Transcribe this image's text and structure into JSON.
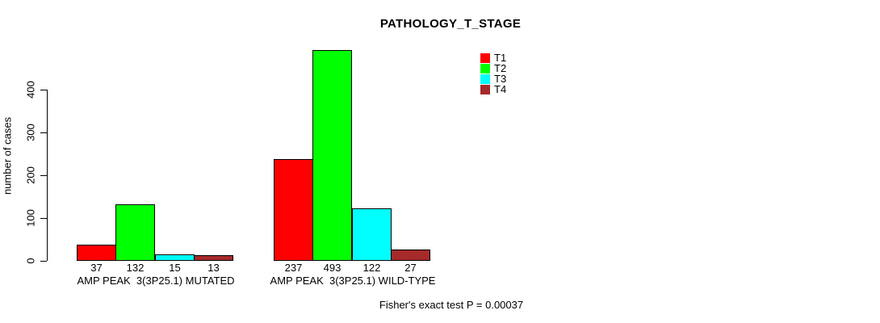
{
  "chart_data": {
    "type": "bar",
    "title": "PATHOLOGY_T_STAGE",
    "ylabel": "number of cases",
    "xlabel": "",
    "ylim": [
      0,
      400
    ],
    "yticks": [
      0,
      100,
      200,
      300,
      400
    ],
    "grid": false,
    "legend_position": "top-right",
    "background": "#ffffff",
    "bar_border_color": "#000000",
    "text_color": "#000000",
    "groups": [
      "AMP PEAK  3(3P25.1) MUTATED",
      "AMP PEAK  3(3P25.1) WILD-TYPE"
    ],
    "series": [
      {
        "name": "T1",
        "color": "#ff0000",
        "values": [
          37,
          237
        ]
      },
      {
        "name": "T2",
        "color": "#00ff00",
        "values": [
          132,
          493
        ]
      },
      {
        "name": "T3",
        "color": "#00ffff",
        "values": [
          15,
          122
        ]
      },
      {
        "name": "T4",
        "color": "#a52a2a",
        "values": [
          13,
          27
        ]
      }
    ],
    "bar_value_labels": [
      [
        "37",
        "132",
        "15",
        "13"
      ],
      [
        "237",
        "493",
        "122",
        "27"
      ]
    ],
    "annotation": "Fisher's exact test P = 0.00037"
  }
}
